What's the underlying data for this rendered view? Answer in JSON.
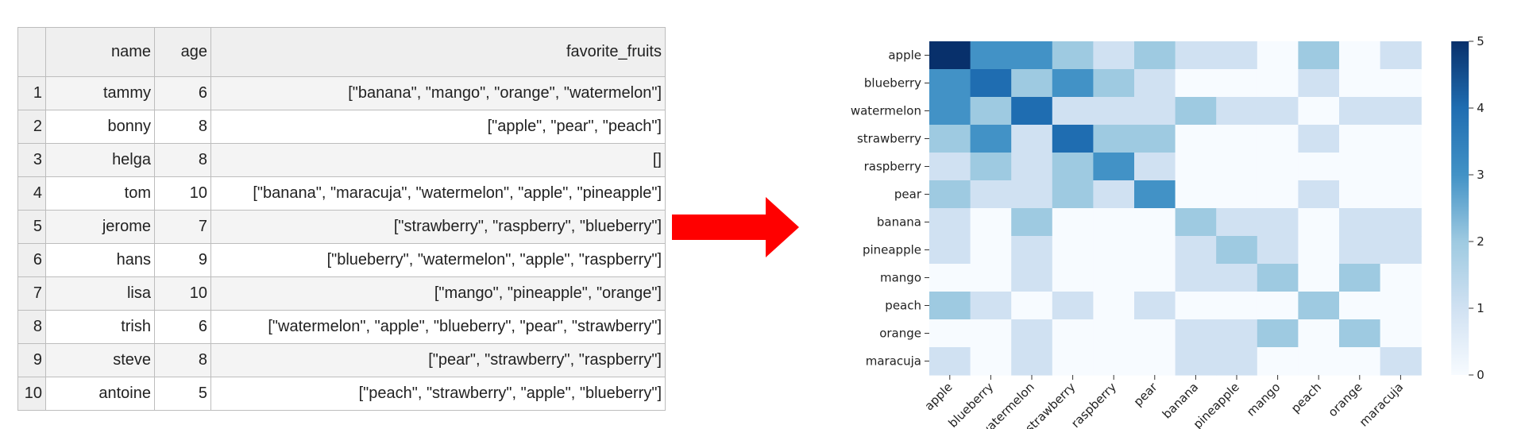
{
  "table": {
    "columns": [
      "",
      "name",
      "age",
      "favorite_fruits"
    ],
    "rows": [
      {
        "idx": "1",
        "name": "tammy",
        "age": "6",
        "favorite_fruits": "[\"banana\", \"mango\", \"orange\", \"watermelon\"]"
      },
      {
        "idx": "2",
        "name": "bonny",
        "age": "8",
        "favorite_fruits": "[\"apple\", \"pear\", \"peach\"]"
      },
      {
        "idx": "3",
        "name": "helga",
        "age": "8",
        "favorite_fruits": "[]"
      },
      {
        "idx": "4",
        "name": "tom",
        "age": "10",
        "favorite_fruits": "[\"banana\", \"maracuja\", \"watermelon\", \"apple\", \"pineapple\"]"
      },
      {
        "idx": "5",
        "name": "jerome",
        "age": "7",
        "favorite_fruits": "[\"strawberry\", \"raspberry\", \"blueberry\"]"
      },
      {
        "idx": "6",
        "name": "hans",
        "age": "9",
        "favorite_fruits": "[\"blueberry\", \"watermelon\", \"apple\", \"raspberry\"]"
      },
      {
        "idx": "7",
        "name": "lisa",
        "age": "10",
        "favorite_fruits": "[\"mango\", \"pineapple\", \"orange\"]"
      },
      {
        "idx": "8",
        "name": "trish",
        "age": "6",
        "favorite_fruits": "[\"watermelon\", \"apple\", \"blueberry\", \"pear\", \"strawberry\"]"
      },
      {
        "idx": "9",
        "name": "steve",
        "age": "8",
        "favorite_fruits": "[\"pear\", \"strawberry\", \"raspberry\"]"
      },
      {
        "idx": "10",
        "name": "antoine",
        "age": "5",
        "favorite_fruits": "[\"peach\", \"strawberry\", \"apple\", \"blueberry\"]"
      }
    ]
  },
  "arrow": {
    "color": "#ff0000",
    "icon": "right-arrow"
  },
  "chart_data": {
    "type": "heatmap",
    "title": "",
    "xlabel": "",
    "ylabel": "",
    "categories": [
      "apple",
      "blueberry",
      "watermelon",
      "strawberry",
      "raspberry",
      "pear",
      "banana",
      "pineapple",
      "mango",
      "peach",
      "orange",
      "maracuja"
    ],
    "values": [
      [
        5,
        3,
        3,
        2,
        1,
        2,
        1,
        1,
        0,
        2,
        0,
        1
      ],
      [
        3,
        4,
        2,
        3,
        2,
        1,
        0,
        0,
        0,
        1,
        0,
        0
      ],
      [
        3,
        2,
        4,
        1,
        1,
        1,
        2,
        1,
        1,
        0,
        1,
        1
      ],
      [
        2,
        3,
        1,
        4,
        2,
        2,
        0,
        0,
        0,
        1,
        0,
        0
      ],
      [
        1,
        2,
        1,
        2,
        3,
        1,
        0,
        0,
        0,
        0,
        0,
        0
      ],
      [
        2,
        1,
        1,
        2,
        1,
        3,
        0,
        0,
        0,
        1,
        0,
        0
      ],
      [
        1,
        0,
        2,
        0,
        0,
        0,
        2,
        1,
        1,
        0,
        1,
        1
      ],
      [
        1,
        0,
        1,
        0,
        0,
        0,
        1,
        2,
        1,
        0,
        1,
        1
      ],
      [
        0,
        0,
        1,
        0,
        0,
        0,
        1,
        1,
        2,
        0,
        2,
        0
      ],
      [
        2,
        1,
        0,
        1,
        0,
        1,
        0,
        0,
        0,
        2,
        0,
        0
      ],
      [
        0,
        0,
        1,
        0,
        0,
        0,
        1,
        1,
        2,
        0,
        2,
        0
      ],
      [
        1,
        0,
        1,
        0,
        0,
        0,
        1,
        1,
        0,
        0,
        0,
        1
      ]
    ],
    "colorbar": {
      "min": 0,
      "max": 5,
      "ticks": [
        "0",
        "1",
        "2",
        "3",
        "4",
        "5"
      ]
    },
    "colormap": [
      "#f7fbff",
      "#d0e1f2",
      "#9ecae1",
      "#4292c6",
      "#1f6db1",
      "#08306b"
    ]
  }
}
